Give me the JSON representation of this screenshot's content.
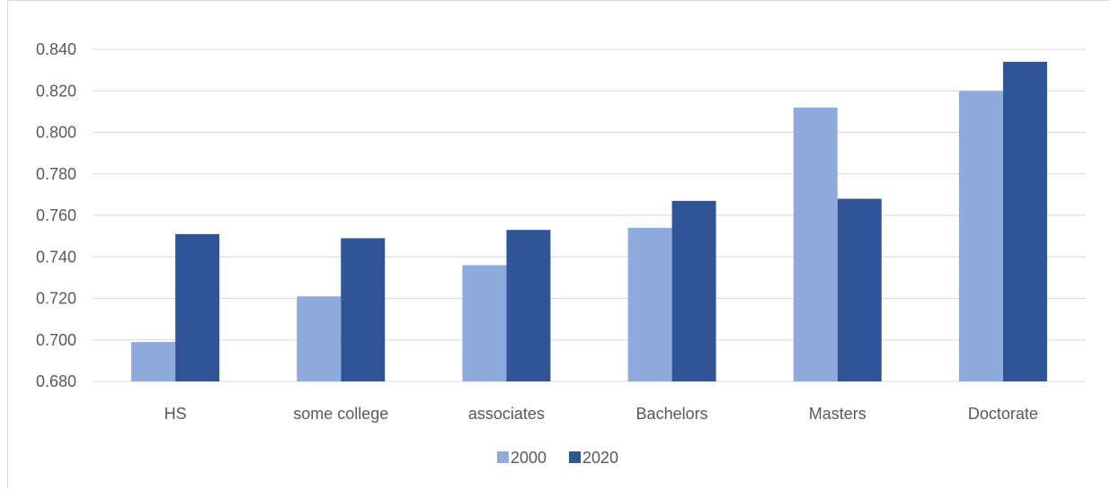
{
  "chart_data": {
    "type": "bar",
    "categories": [
      "HS",
      "some college",
      "associates",
      "Bachelors",
      "Masters",
      "Doctorate"
    ],
    "series": [
      {
        "name": "2000",
        "values": [
          0.699,
          0.721,
          0.736,
          0.754,
          0.812,
          0.82
        ],
        "color": "#8faadc"
      },
      {
        "name": "2020",
        "values": [
          0.751,
          0.749,
          0.753,
          0.767,
          0.768,
          0.834
        ],
        "color": "#2f5597"
      }
    ],
    "ylim": [
      0.68,
      0.84
    ],
    "yticks": [
      "0.680",
      "0.700",
      "0.720",
      "0.740",
      "0.760",
      "0.780",
      "0.800",
      "0.820",
      "0.840"
    ],
    "title": "",
    "xlabel": "",
    "ylabel": "",
    "grid": true,
    "legend": "bottom"
  }
}
